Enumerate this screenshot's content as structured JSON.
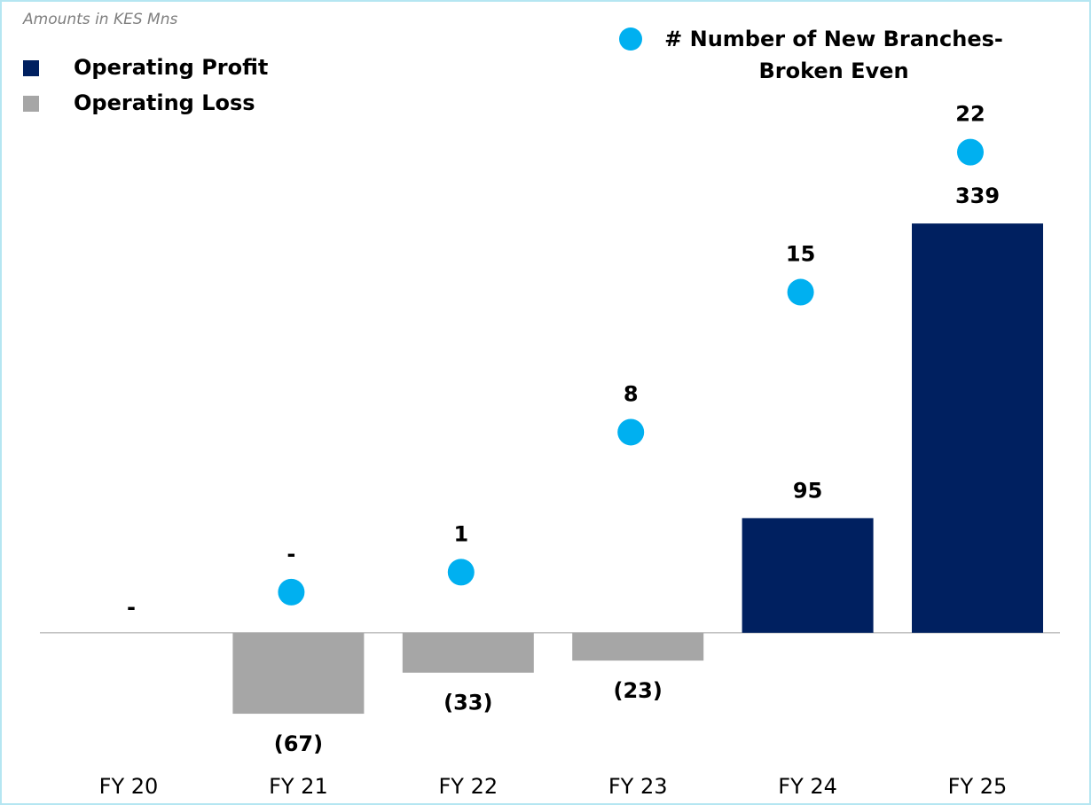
{
  "chart_data": {
    "type": "bar",
    "note": "Amounts in KES Mns",
    "categories": [
      "FY 20",
      "FY 21",
      "FY 22",
      "FY 23",
      "FY 24",
      "FY 25"
    ],
    "ylim": [
      -100,
      400
    ],
    "y2lim": [
      -2,
      25
    ],
    "series": [
      {
        "name": "Operating Profit",
        "color": "#002060",
        "values": [
          0,
          null,
          null,
          null,
          95,
          339
        ],
        "value_labels": [
          "-",
          null,
          null,
          null,
          "95",
          "339"
        ]
      },
      {
        "name": "Operating Loss",
        "color": "#a6a6a6",
        "values": [
          null,
          -67,
          -33,
          -23,
          null,
          null
        ],
        "value_labels": [
          null,
          "(67)",
          "(33)",
          "(23)",
          null,
          null
        ]
      },
      {
        "name": "# Number of New Branches- Broken Even",
        "type": "scatter",
        "axis": "y2",
        "color": "#00b0f0",
        "values": [
          null,
          0,
          1,
          8,
          15,
          22
        ],
        "value_labels": [
          null,
          "-",
          "1",
          "8",
          "15",
          "22"
        ]
      }
    ]
  }
}
